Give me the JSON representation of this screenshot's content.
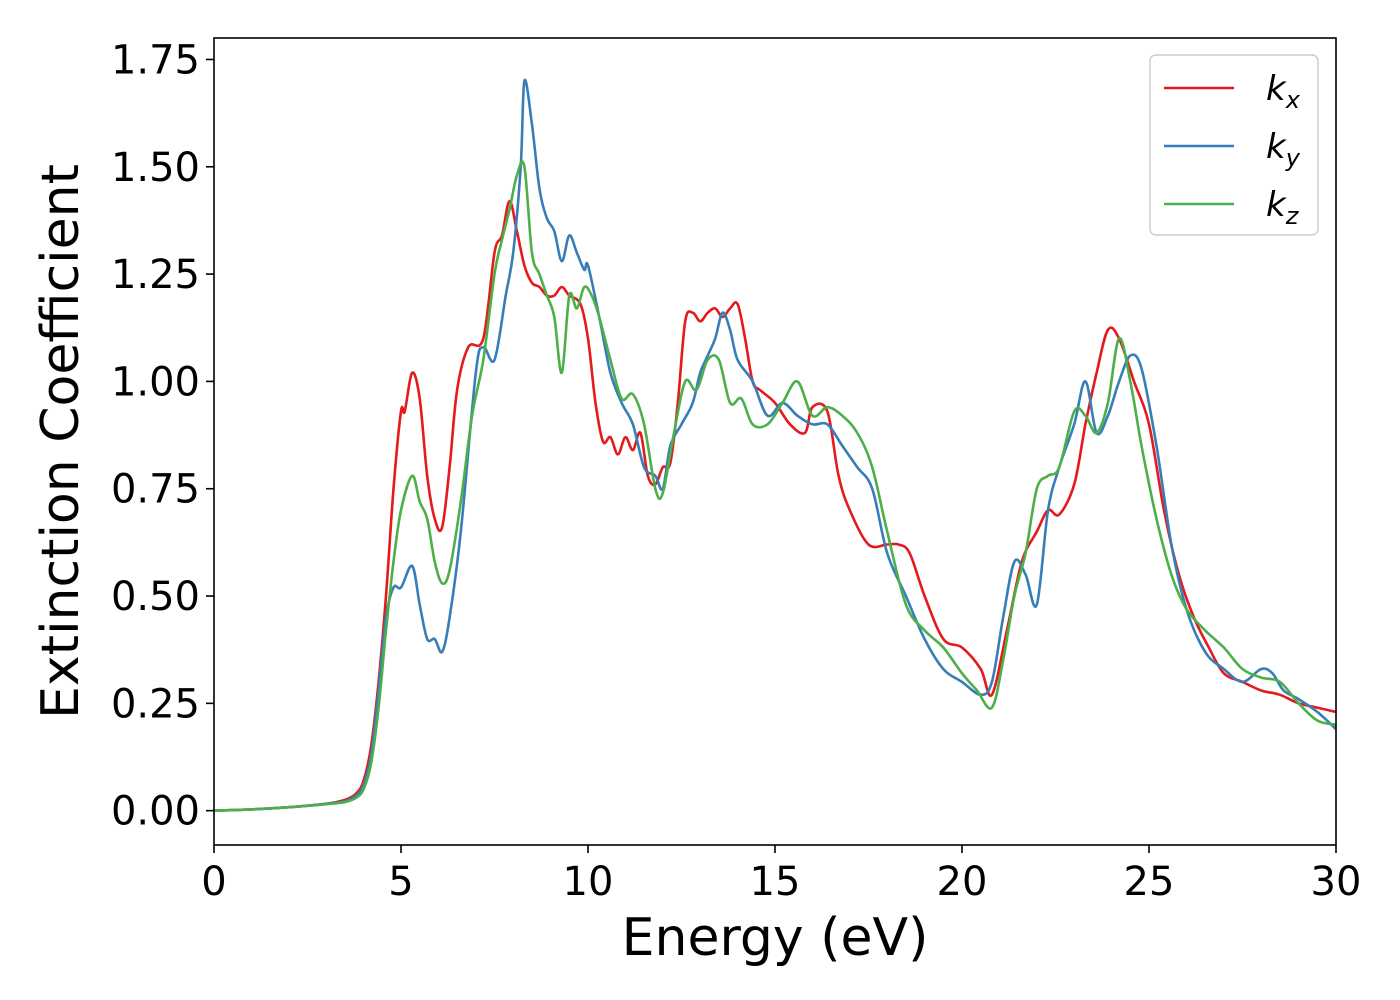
{
  "chart_data": {
    "type": "line",
    "title": "",
    "xlabel": "Energy (eV)",
    "ylabel": "Extinction Coefficient",
    "xlim": [
      0,
      30
    ],
    "ylim": [
      -0.08,
      1.8
    ],
    "xticks": [
      "0",
      "5",
      "10",
      "15",
      "20",
      "25",
      "30"
    ],
    "yticks": [
      "0.00",
      "0.25",
      "0.50",
      "0.75",
      "1.00",
      "1.25",
      "1.50",
      "1.75"
    ],
    "grid": false,
    "legend_placement": "top-right",
    "series": [
      {
        "name": "k_x",
        "label_main": "k",
        "label_sub": "x",
        "color": "#e41a1c",
        "x": [
          0,
          1,
          2,
          3,
          3.5,
          3.8,
          4.0,
          4.2,
          4.4,
          4.6,
          4.8,
          5.0,
          5.1,
          5.3,
          5.5,
          5.7,
          5.9,
          6.1,
          6.3,
          6.5,
          6.8,
          7.2,
          7.5,
          7.7,
          7.9,
          8.1,
          8.3,
          8.5,
          8.7,
          8.9,
          9.1,
          9.3,
          9.5,
          9.8,
          10.0,
          10.2,
          10.4,
          10.6,
          10.8,
          11.0,
          11.2,
          11.4,
          11.6,
          11.8,
          12.0,
          12.2,
          12.4,
          12.6,
          12.8,
          13.0,
          13.2,
          13.4,
          13.6,
          13.8,
          14.0,
          14.2,
          14.4,
          14.6,
          15.0,
          15.4,
          15.8,
          16.0,
          16.4,
          16.7,
          17.0,
          17.5,
          18.0,
          18.3,
          18.6,
          19.0,
          19.5,
          20.0,
          20.5,
          20.8,
          21.2,
          21.6,
          22.0,
          22.3,
          22.6,
          23.0,
          23.3,
          23.6,
          23.9,
          24.2,
          24.6,
          25.0,
          25.4,
          25.8,
          26.2,
          26.6,
          27.0,
          27.5,
          28.0,
          28.5,
          29.0,
          29.5,
          30.0
        ],
        "y": [
          0.0,
          0.003,
          0.008,
          0.016,
          0.025,
          0.04,
          0.07,
          0.15,
          0.3,
          0.5,
          0.75,
          0.93,
          0.93,
          1.02,
          0.96,
          0.78,
          0.68,
          0.66,
          0.8,
          0.98,
          1.08,
          1.1,
          1.3,
          1.34,
          1.42,
          1.35,
          1.27,
          1.23,
          1.22,
          1.2,
          1.2,
          1.22,
          1.2,
          1.18,
          1.1,
          0.95,
          0.86,
          0.87,
          0.83,
          0.87,
          0.84,
          0.88,
          0.78,
          0.76,
          0.8,
          0.81,
          0.95,
          1.14,
          1.16,
          1.14,
          1.16,
          1.17,
          1.15,
          1.17,
          1.18,
          1.1,
          1.0,
          0.98,
          0.95,
          0.9,
          0.88,
          0.94,
          0.93,
          0.78,
          0.7,
          0.62,
          0.62,
          0.62,
          0.6,
          0.5,
          0.4,
          0.38,
          0.33,
          0.27,
          0.42,
          0.58,
          0.65,
          0.7,
          0.69,
          0.76,
          0.9,
          1.02,
          1.12,
          1.1,
          1.0,
          0.9,
          0.7,
          0.55,
          0.45,
          0.38,
          0.32,
          0.3,
          0.28,
          0.27,
          0.25,
          0.24,
          0.23
        ]
      },
      {
        "name": "k_y",
        "label_main": "k",
        "label_sub": "y",
        "color": "#377eb8",
        "x": [
          0,
          1,
          2,
          3,
          3.5,
          3.8,
          4.0,
          4.2,
          4.4,
          4.6,
          4.8,
          5.0,
          5.3,
          5.5,
          5.7,
          5.9,
          6.1,
          6.3,
          6.6,
          7.0,
          7.2,
          7.5,
          7.8,
          8.0,
          8.2,
          8.3,
          8.5,
          8.7,
          8.9,
          9.1,
          9.3,
          9.5,
          9.7,
          9.9,
          10.0,
          10.3,
          10.6,
          10.9,
          11.2,
          11.5,
          11.8,
          12.0,
          12.2,
          12.5,
          12.8,
          13.0,
          13.2,
          13.4,
          13.6,
          13.8,
          14.0,
          14.4,
          14.8,
          15.2,
          15.6,
          16.0,
          16.4,
          16.8,
          17.2,
          17.6,
          18.0,
          18.5,
          19.0,
          19.5,
          20.0,
          20.5,
          20.8,
          21.1,
          21.4,
          21.7,
          22.0,
          22.3,
          22.6,
          23.0,
          23.3,
          23.6,
          23.9,
          24.2,
          24.5,
          24.8,
          25.2,
          25.6,
          26.0,
          26.5,
          27.0,
          27.5,
          28.0,
          28.3,
          28.6,
          29.0,
          29.5,
          30.0
        ],
        "y": [
          0.0,
          0.003,
          0.008,
          0.016,
          0.022,
          0.035,
          0.06,
          0.13,
          0.28,
          0.45,
          0.52,
          0.52,
          0.57,
          0.48,
          0.4,
          0.4,
          0.37,
          0.45,
          0.65,
          1.02,
          1.08,
          1.05,
          1.2,
          1.3,
          1.5,
          1.7,
          1.6,
          1.45,
          1.38,
          1.35,
          1.28,
          1.34,
          1.3,
          1.26,
          1.27,
          1.15,
          1.02,
          0.95,
          0.9,
          0.8,
          0.78,
          0.75,
          0.85,
          0.9,
          0.95,
          1.02,
          1.06,
          1.1,
          1.16,
          1.12,
          1.05,
          1.0,
          0.92,
          0.95,
          0.92,
          0.9,
          0.9,
          0.85,
          0.8,
          0.75,
          0.6,
          0.5,
          0.4,
          0.33,
          0.3,
          0.27,
          0.3,
          0.45,
          0.58,
          0.55,
          0.48,
          0.7,
          0.8,
          0.9,
          1.0,
          0.88,
          0.92,
          1.0,
          1.06,
          1.03,
          0.85,
          0.62,
          0.47,
          0.37,
          0.33,
          0.3,
          0.33,
          0.32,
          0.28,
          0.26,
          0.23,
          0.19
        ]
      },
      {
        "name": "k_z",
        "label_main": "k",
        "label_sub": "z",
        "color": "#4daf4a",
        "x": [
          0,
          1,
          2,
          3,
          3.5,
          3.8,
          4.0,
          4.2,
          4.4,
          4.6,
          4.8,
          5.0,
          5.3,
          5.5,
          5.7,
          5.9,
          6.1,
          6.3,
          6.6,
          6.9,
          7.2,
          7.5,
          7.7,
          7.9,
          8.1,
          8.3,
          8.5,
          8.7,
          8.9,
          9.1,
          9.3,
          9.5,
          9.7,
          9.9,
          10.1,
          10.3,
          10.6,
          10.9,
          11.2,
          11.5,
          11.8,
          12.0,
          12.3,
          12.6,
          12.9,
          13.2,
          13.5,
          13.8,
          14.1,
          14.4,
          14.8,
          15.2,
          15.6,
          16.0,
          16.4,
          16.8,
          17.2,
          17.6,
          18.0,
          18.5,
          19.0,
          19.5,
          20.0,
          20.4,
          20.8,
          21.1,
          21.4,
          21.7,
          22.0,
          22.3,
          22.6,
          23.0,
          23.3,
          23.6,
          23.9,
          24.2,
          24.5,
          24.8,
          25.2,
          25.6,
          26.0,
          26.5,
          27.0,
          27.5,
          28.0,
          28.5,
          29.0,
          29.5,
          30.0
        ],
        "y": [
          0.0,
          0.003,
          0.008,
          0.015,
          0.02,
          0.03,
          0.05,
          0.11,
          0.24,
          0.42,
          0.58,
          0.7,
          0.78,
          0.72,
          0.68,
          0.58,
          0.53,
          0.56,
          0.72,
          0.92,
          1.05,
          1.25,
          1.33,
          1.4,
          1.48,
          1.5,
          1.3,
          1.25,
          1.2,
          1.15,
          1.02,
          1.2,
          1.17,
          1.22,
          1.2,
          1.15,
          1.05,
          0.96,
          0.97,
          0.9,
          0.75,
          0.74,
          0.88,
          1.0,
          0.98,
          1.05,
          1.05,
          0.95,
          0.96,
          0.9,
          0.9,
          0.95,
          1.0,
          0.92,
          0.94,
          0.92,
          0.88,
          0.8,
          0.65,
          0.48,
          0.42,
          0.38,
          0.32,
          0.28,
          0.24,
          0.35,
          0.5,
          0.6,
          0.75,
          0.78,
          0.8,
          0.93,
          0.92,
          0.88,
          0.95,
          1.1,
          1.0,
          0.85,
          0.68,
          0.55,
          0.47,
          0.42,
          0.38,
          0.33,
          0.31,
          0.3,
          0.25,
          0.21,
          0.2
        ]
      }
    ]
  }
}
